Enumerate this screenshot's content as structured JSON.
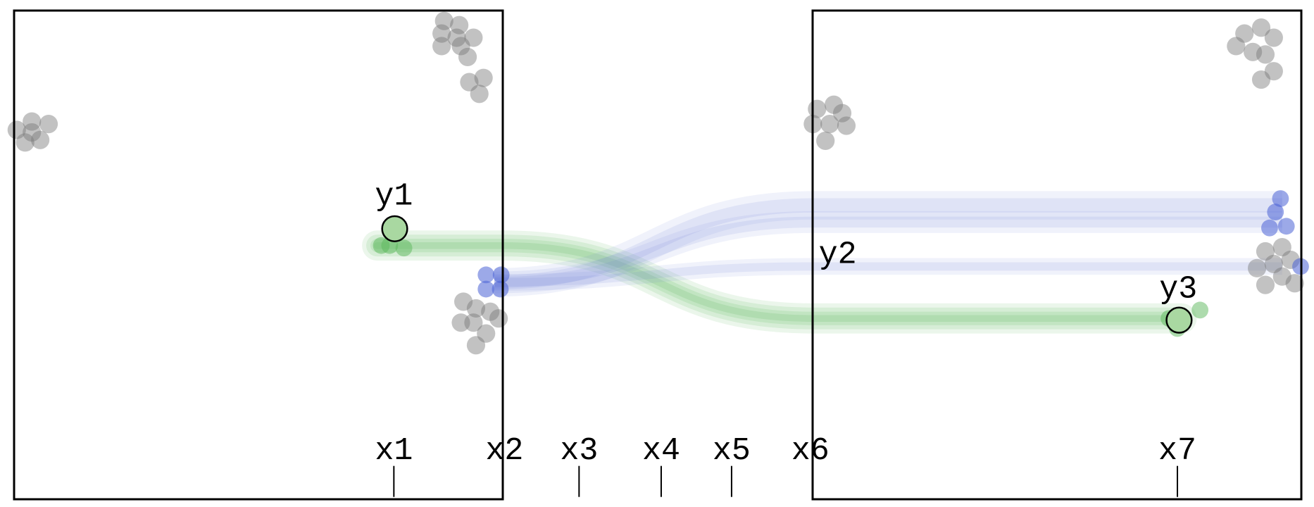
{
  "labels": {
    "x": [
      "x1",
      "x2",
      "x3",
      "x4",
      "x5",
      "x6",
      "x7"
    ],
    "y": [
      "y1",
      "y2",
      "y3"
    ]
  }
}
